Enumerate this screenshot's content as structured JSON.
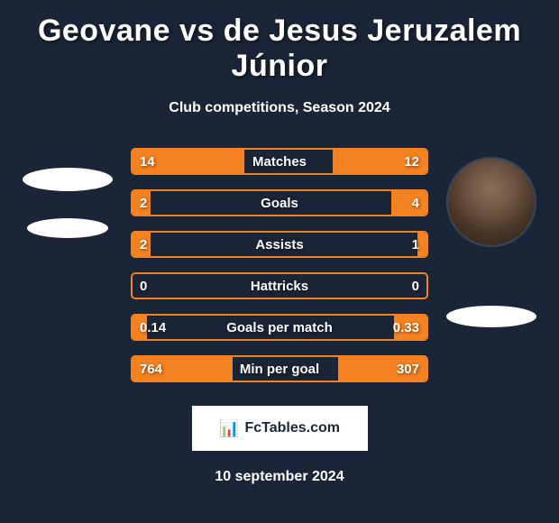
{
  "title": "Geovane vs de Jesus Jeruzalem Júnior",
  "subtitle": "Club competitions, Season 2024",
  "date": "10 september 2024",
  "branding": {
    "icon": "📊",
    "text": "FcTables.com"
  },
  "colors": {
    "background": "#1a2638",
    "accent": "#f58220",
    "text": "#ffffff"
  },
  "styling": {
    "title_fontsize": 34,
    "subtitle_fontsize": 16,
    "stat_label_fontsize": 15,
    "stat_value_fontsize": 15,
    "stat_row_height": 30,
    "stat_row_gap": 16,
    "border_radius": 5,
    "border_width": 2
  },
  "player_left": {
    "name": "Geovane",
    "has_avatar": false
  },
  "player_right": {
    "name": "de Jesus Jeruzalem Júnior",
    "has_avatar": true
  },
  "stats": [
    {
      "label": "Matches",
      "left_value": "14",
      "right_value": "12",
      "left_fill_pct": 38,
      "right_fill_pct": 32
    },
    {
      "label": "Goals",
      "left_value": "2",
      "right_value": "4",
      "left_fill_pct": 6,
      "right_fill_pct": 12
    },
    {
      "label": "Assists",
      "left_value": "2",
      "right_value": "1",
      "left_fill_pct": 6,
      "right_fill_pct": 3
    },
    {
      "label": "Hattricks",
      "left_value": "0",
      "right_value": "0",
      "left_fill_pct": 0,
      "right_fill_pct": 0
    },
    {
      "label": "Goals per match",
      "left_value": "0.14",
      "right_value": "0.33",
      "left_fill_pct": 5,
      "right_fill_pct": 11
    },
    {
      "label": "Min per goal",
      "left_value": "764",
      "right_value": "307",
      "left_fill_pct": 34,
      "right_fill_pct": 30
    }
  ]
}
